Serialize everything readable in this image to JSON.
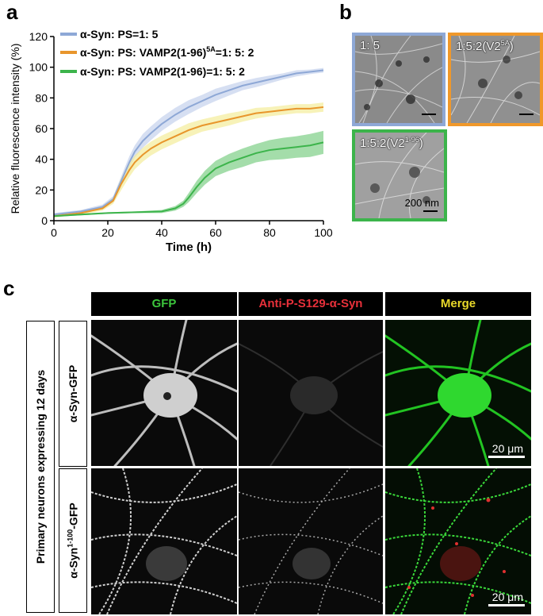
{
  "panels": {
    "a": {
      "letter": "a",
      "chart_data": {
        "type": "line",
        "xlabel": "Time (h)",
        "ylabel": "Relative fluorescence intensity (%)",
        "xlim": [
          0,
          100
        ],
        "ylim": [
          0,
          120
        ],
        "xticks": [
          "0",
          "20",
          "40",
          "60",
          "80",
          "100"
        ],
        "yticks": [
          "0",
          "20",
          "40",
          "60",
          "80",
          "100",
          "120"
        ],
        "legend_position": "top-left",
        "series": [
          {
            "name": "α-Syn: PS=1: 5",
            "color": "#8ea8d6",
            "band_color": "#c4d2ec",
            "x": [
              0,
              10,
              18,
              22,
              25,
              28,
              30,
              33,
              36,
              40,
              45,
              50,
              55,
              60,
              65,
              70,
              75,
              80,
              85,
              90,
              95,
              100
            ],
            "y": [
              4,
              6,
              9,
              14,
              26,
              38,
              45,
              52,
              57,
              63,
              69,
              74,
              78,
              82,
              85,
              88,
              90,
              92,
              94,
              96,
              97,
              98
            ],
            "band": [
              1,
              1,
              1.5,
              2,
              3,
              4,
              4,
              4.5,
              4.5,
              4.5,
              4.5,
              4.5,
              4,
              4,
              3.5,
              3,
              3,
              2.5,
              2,
              2,
              1.5,
              1.5
            ]
          },
          {
            "name": "α-Syn: PS: VAMP2(1-96)",
            "name_sup": "5A",
            "name_suffix": "=1: 5: 2",
            "color": "#e8962c",
            "band_color": "#f3ed9a",
            "x": [
              0,
              10,
              18,
              22,
              25,
              28,
              30,
              33,
              36,
              40,
              45,
              50,
              55,
              60,
              65,
              70,
              75,
              80,
              85,
              90,
              95,
              100
            ],
            "y": [
              3,
              5,
              8,
              13,
              24,
              33,
              38,
              43,
              47,
              51,
              55,
              59,
              62,
              64,
              66,
              68,
              70,
              71,
              72,
              73,
              73,
              74
            ],
            "band": [
              1,
              1,
              1.5,
              2,
              4,
              4.5,
              4.5,
              4.5,
              4.5,
              4.5,
              4.5,
              4.5,
              4,
              4,
              4,
              3.5,
              3.5,
              3,
              3,
              3,
              3,
              3
            ]
          },
          {
            "name": "α-Syn: PS: VAMP2(1-96)=1: 5: 2",
            "color": "#3cb44b",
            "band_color": "#7ecf86",
            "x": [
              0,
              10,
              20,
              30,
              40,
              45,
              48,
              50,
              53,
              56,
              60,
              65,
              70,
              75,
              80,
              85,
              90,
              95,
              100
            ],
            "y": [
              3,
              4,
              5,
              5.5,
              6,
              8,
              11,
              15,
              22,
              28,
              34,
              38,
              41,
              44,
              46,
              47,
              48,
              49,
              51
            ],
            "band": [
              0.5,
              0.5,
              0.5,
              0.5,
              1,
              1.5,
              2,
              3,
              4,
              4.5,
              5,
              5.5,
              6,
              6,
              6.5,
              7,
              7,
              7.5,
              7.5
            ]
          }
        ]
      }
    },
    "b": {
      "letter": "b",
      "images": [
        {
          "label": "1: 5",
          "sup": "",
          "tail": "",
          "border_color": "#8ea8d6"
        },
        {
          "label": "1:5:2(V2",
          "sup": "5A",
          "tail": ")",
          "border_color": "#f0982a"
        },
        {
          "label": "1:5:2(V2",
          "sup": "1-96",
          "tail": ")",
          "border_color": "#3cb44b"
        }
      ],
      "scale_text": "200 nm"
    },
    "c": {
      "letter": "c",
      "column_headers": [
        {
          "text": "GFP",
          "color": "#3cc53c"
        },
        {
          "text": "Anti-P-S129-α-Syn",
          "color": "#e8303a"
        },
        {
          "text": "Merge",
          "color": "#e8d82a"
        }
      ],
      "side_label": "Primary neurons expressing 12 days",
      "rows": [
        {
          "label": "α-Syn-GFP",
          "sup": "",
          "tail": ""
        },
        {
          "label": "α-Syn",
          "sup": "1-100",
          "tail": "-GFP"
        }
      ],
      "scale_text": "20 μm"
    }
  }
}
